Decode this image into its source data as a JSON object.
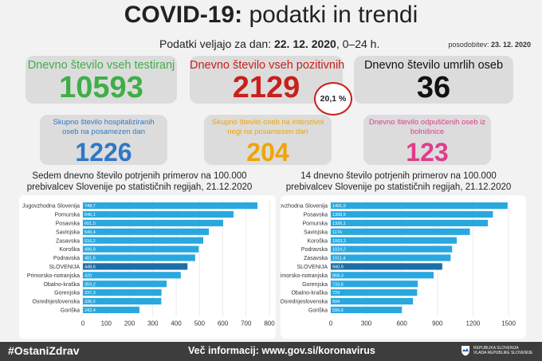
{
  "header": {
    "title_bold": "COVID-19:",
    "title_rest": " podatki in trendi",
    "subtitle_prefix": "Podatki veljajo za dan: ",
    "subtitle_date": "22. 12. 2020",
    "subtitle_suffix": ", 0–24 h.",
    "updated_prefix": "posodobitev: ",
    "updated_date": "23. 12. 2020"
  },
  "stats": {
    "tested": {
      "label": "Dnevno število vseh testiranj",
      "value": "10593",
      "color": "#3fae49"
    },
    "positive": {
      "label": "Dnevno število vseh pozitivnih",
      "value": "2129",
      "color": "#c8201b"
    },
    "deaths": {
      "label": "Dnevno število umrlih oseb",
      "value": "36",
      "color": "#111111"
    },
    "positive_pct": "20,1 %",
    "hospitalized": {
      "label": "Skupno število hospitaliziranih oseb na posamezen dan",
      "value": "1226",
      "color": "#2f78c4"
    },
    "icu": {
      "label": "Skupno število oseb na intenzivni negi na posamezen dan",
      "value": "204",
      "color": "#f0a500"
    },
    "discharged": {
      "label": "Dnevno število odpuščenih oseb iz bolnišnice",
      "value": "123",
      "color": "#e03c8a"
    }
  },
  "chart_data": [
    {
      "type": "bar",
      "orientation": "horizontal",
      "title": "Sedem dnevno število potrjenih primerov na 100.000 prebivalcev Slovenije po statističnih regijah, 21.12.2020",
      "categories": [
        "Jugovzhodna Slovenija",
        "Pomurska",
        "Posavska",
        "Savinjska",
        "Zasavska",
        "Koroška",
        "Podravska",
        "SLOVENIJA",
        "Primorsko-notranjska",
        "Obalno-kraška",
        "Gorenjska",
        "Osrednjeslovenska",
        "Goriška"
      ],
      "value_labels": [
        "748,7",
        "646,1",
        "601,5",
        "540,4",
        "516,2",
        "496,9",
        "481,6",
        "448,6",
        "420",
        "359,2",
        "337,3",
        "336,2",
        "242,4"
      ],
      "values": [
        748.7,
        646.1,
        601.5,
        540.4,
        516.2,
        496.9,
        481.6,
        448.6,
        420,
        359.2,
        337.3,
        336.2,
        242.4
      ],
      "highlight": "SLOVENIJA",
      "xlim": [
        0,
        800
      ],
      "ticks": [
        "0",
        "100",
        "200",
        "300",
        "400",
        "500",
        "600",
        "700",
        "800"
      ],
      "bar_color": "#29a8e0",
      "highlight_color": "#1b6fa8"
    },
    {
      "type": "bar",
      "orientation": "horizontal",
      "title": "14 dnevno število potrjenih primerov na 100.000 prebivalcev Slovenije po statističnih regijah, 21.12.2020",
      "categories": [
        "Jugovzhodna Slovenija",
        "Posavska",
        "Pomurska",
        "Savinjska",
        "Koroška",
        "Podravska",
        "Zasavska",
        "SLOVENIJA",
        "Primorsko-notranjska",
        "Gorenjska",
        "Obalno-kraška",
        "Osrednjeslovenska",
        "Goriška"
      ],
      "value_labels": [
        "1491,9",
        "1368,5",
        "1326,1",
        "1174",
        "1063,3",
        "1024,2",
        "1011,4",
        "940,9",
        "868,3",
        "733,8",
        "729",
        "694",
        "599,6"
      ],
      "values": [
        1491.9,
        1368.5,
        1326.1,
        1174,
        1063.3,
        1024.2,
        1011.4,
        940.9,
        868.3,
        733.8,
        729,
        694,
        599.6
      ],
      "highlight": "SLOVENIJA",
      "xlim": [
        0,
        1500
      ],
      "ticks": [
        "0",
        "300",
        "600",
        "900",
        "1200",
        "1500"
      ],
      "bar_color": "#29a8e0",
      "highlight_color": "#1b6fa8"
    }
  ],
  "footer": {
    "hashtag": "#OstaniZdrav",
    "info": "Več informacij: www.gov.si/koronavirus",
    "gov_line1": "Republika Slovenija",
    "gov_line2": "Vlada Republike Slovenije"
  }
}
